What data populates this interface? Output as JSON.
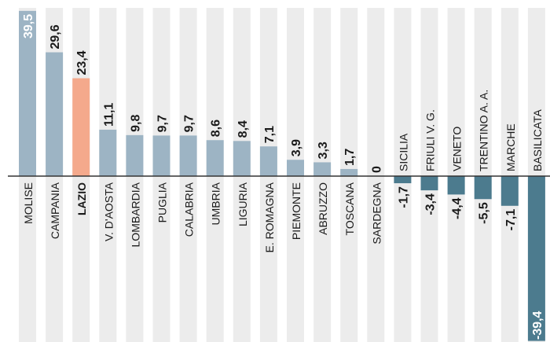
{
  "chart_data": {
    "type": "bar",
    "categories": [
      "MOLISE",
      "CAMPANIA",
      "LAZIO",
      "V. D'AOSTA",
      "LOMBARDIA",
      "PUGLIA",
      "CALABRIA",
      "UMBRIA",
      "LIGURIA",
      "E. ROMAGNA",
      "PIEMONTE",
      "ABRUZZO",
      "TOSCANA",
      "SARDEGNA",
      "SICILIA",
      "FRIULI V. G.",
      "VENETO",
      "TRENTINO A. A.",
      "MARCHE",
      "BASILICATA"
    ],
    "values": [
      39.5,
      29.6,
      23.4,
      11.1,
      9.8,
      9.7,
      9.7,
      8.6,
      8.4,
      7.1,
      3.9,
      3.3,
      1.7,
      0,
      -1.7,
      -3.4,
      -4.4,
      -5.5,
      -7.1,
      -39.4
    ],
    "value_labels": [
      "39,5",
      "29,6",
      "23,4",
      "11,1",
      "9,8",
      "9,7",
      "9,7",
      "8,6",
      "8,4",
      "7,1",
      "3,9",
      "3,3",
      "1,7",
      "0",
      "-1,7",
      "-3,4",
      "-4,4",
      "-5,5",
      "-7,1",
      "-39,4"
    ],
    "highlight": "LAZIO",
    "colors": {
      "positive": "#9db4c4",
      "negative": "#4c7b8e",
      "highlight": "#f4a98c",
      "column_band": "#ececec",
      "baseline": "#333333",
      "text": "#1a1a1a"
    },
    "ylim": [
      -39.4,
      39.5
    ],
    "grid": false,
    "title": "",
    "xlabel": "",
    "ylabel": ""
  }
}
